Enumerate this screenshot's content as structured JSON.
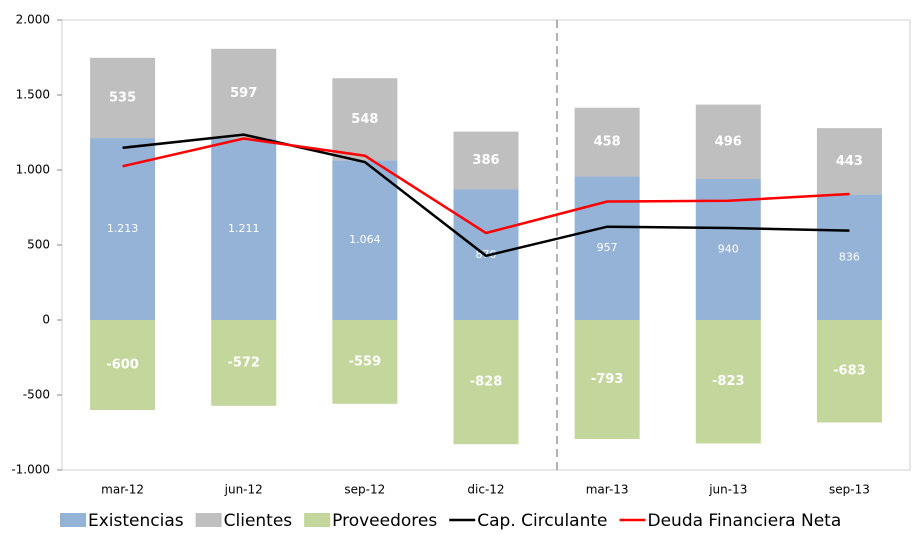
{
  "chart_data": {
    "type": "bar",
    "categories": [
      "mar-12",
      "jun-12",
      "sep-12",
      "dic-12",
      "mar-13",
      "jun-13",
      "sep-13"
    ],
    "series": [
      {
        "name": "Existencias",
        "type": "bar",
        "color": "#95b3d7",
        "values": [
          1213,
          1211,
          1064,
          870,
          957,
          940,
          836
        ],
        "value_labels": [
          "1.213",
          "1.211",
          "1.064",
          "870",
          "957",
          "940",
          "836"
        ]
      },
      {
        "name": "Clientes",
        "type": "bar",
        "color": "#bfbfbf",
        "values": [
          535,
          597,
          548,
          386,
          458,
          496,
          443
        ]
      },
      {
        "name": "Proveedores",
        "type": "bar",
        "color": "#c3d69b",
        "values": [
          -600,
          -572,
          -559,
          -828,
          -793,
          -823,
          -683
        ]
      },
      {
        "name": "Cap. Circulante",
        "type": "line",
        "color": "#000000",
        "values": [
          1148,
          1236,
          1053,
          428,
          622,
          613,
          596
        ]
      },
      {
        "name": "Deuda Financiera Neta",
        "type": "line",
        "color": "#ff0000",
        "values": [
          1025,
          1210,
          1095,
          580,
          790,
          795,
          840
        ]
      }
    ],
    "ylim": [
      -1000,
      2000
    ],
    "yticks": [
      {
        "value": -1000,
        "label": "-1.000"
      },
      -500,
      0,
      500,
      {
        "value": 1000,
        "label": "1.000"
      },
      {
        "value": 1500,
        "label": "1.500"
      },
      {
        "value": 2000,
        "label": "2.000"
      }
    ]
  }
}
